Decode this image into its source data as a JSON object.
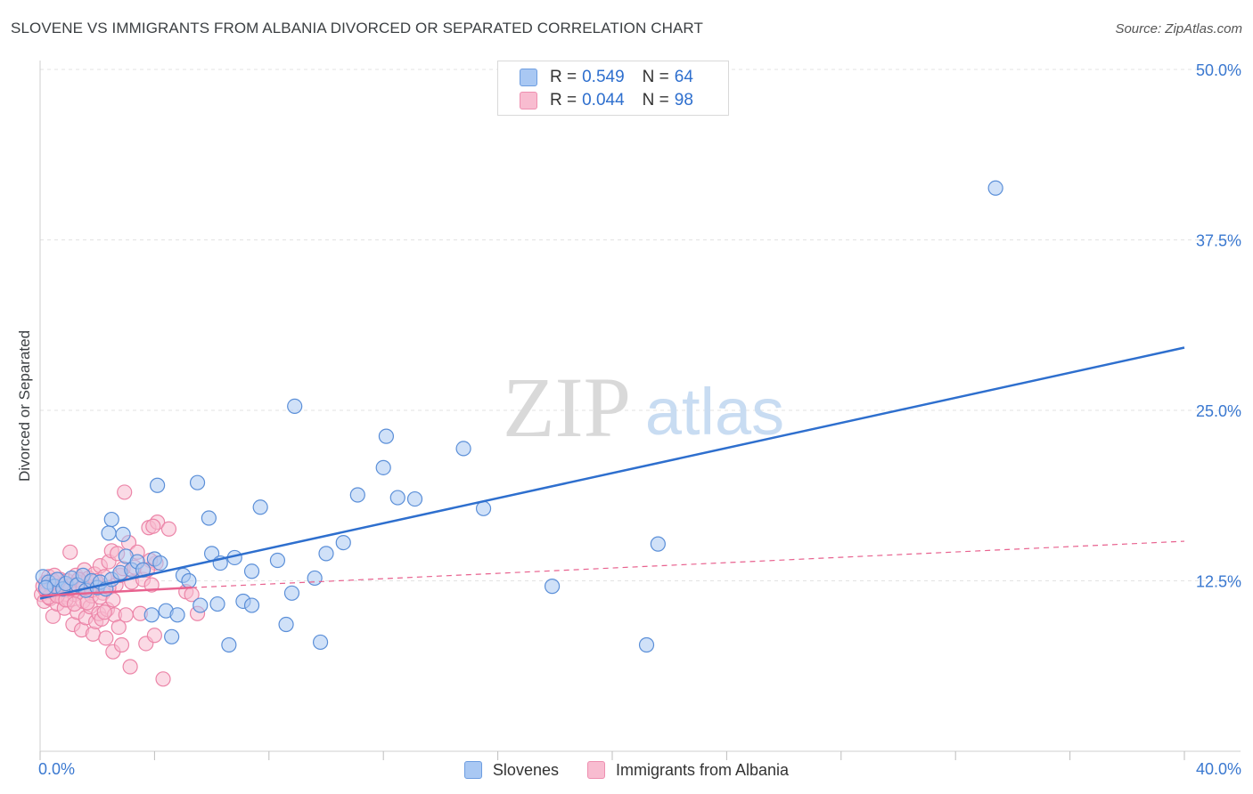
{
  "title": "SLOVENE VS IMMIGRANTS FROM ALBANIA DIVORCED OR SEPARATED CORRELATION CHART",
  "source": "Source: ZipAtlas.com",
  "watermark": {
    "zip": "ZIP",
    "atlas": "atlas"
  },
  "legend": {
    "r_label": "R =",
    "n_label": "N =",
    "rows": [
      {
        "r": "0.549",
        "n": "64",
        "color": "#a9c8f3",
        "stroke": "#6d9de0"
      },
      {
        "r": "0.044",
        "n": "98",
        "color": "#f8bcd0",
        "stroke": "#ee8fb0"
      }
    ]
  },
  "bottom_legend": [
    "Slovenes",
    "Immigrants from Albania"
  ],
  "chart_data": {
    "type": "scatter",
    "title": "SLOVENE VS IMMIGRANTS FROM ALBANIA DIVORCED OR SEPARATED CORRELATION CHART",
    "xlabel": "",
    "ylabel": "Divorced or Separated",
    "xlim": [
      0,
      40
    ],
    "ylim": [
      0,
      50
    ],
    "x_tick_labels": [
      "0.0%",
      "40.0%"
    ],
    "y_ticks": [
      12.5,
      25.0,
      37.5,
      50.0
    ],
    "y_tick_labels": [
      "12.5%",
      "25.0%",
      "37.5%",
      "50.0%"
    ],
    "grid": true,
    "colors": {
      "slovenes_fill": "#a9c8f3",
      "slovenes_stroke": "#5b8fd8",
      "slovenes_line": "#2e6fce",
      "albania_fill": "#f8bcd0",
      "albania_stroke": "#ec85a8",
      "albania_line": "#e8628f"
    },
    "series": [
      {
        "name": "Slovenes",
        "r": 0.549,
        "n": 64,
        "trend": {
          "x": [
            0,
            40
          ],
          "y": [
            11.2,
            29.6
          ]
        },
        "points": [
          [
            0.1,
            12.8
          ],
          [
            0.3,
            12.4
          ],
          [
            0.5,
            12.1
          ],
          [
            0.6,
            12.6
          ],
          [
            0.8,
            11.9
          ],
          [
            0.9,
            12.3
          ],
          [
            1.1,
            12.7
          ],
          [
            1.3,
            12.2
          ],
          [
            1.5,
            12.9
          ],
          [
            1.6,
            11.8
          ],
          [
            1.8,
            12.5
          ],
          [
            2.0,
            12.0
          ],
          [
            2.1,
            12.4
          ],
          [
            2.3,
            11.9
          ],
          [
            2.5,
            12.6
          ],
          [
            2.4,
            16.0
          ],
          [
            2.5,
            17.0
          ],
          [
            2.8,
            13.1
          ],
          [
            2.9,
            15.9
          ],
          [
            3.0,
            14.3
          ],
          [
            3.2,
            13.3
          ],
          [
            3.4,
            13.9
          ],
          [
            3.6,
            13.3
          ],
          [
            3.9,
            10.0
          ],
          [
            4.0,
            14.1
          ],
          [
            4.1,
            19.5
          ],
          [
            4.2,
            13.8
          ],
          [
            4.4,
            10.3
          ],
          [
            4.6,
            8.4
          ],
          [
            4.8,
            10.0
          ],
          [
            5.0,
            12.9
          ],
          [
            5.2,
            12.5
          ],
          [
            5.5,
            19.7
          ],
          [
            5.6,
            10.7
          ],
          [
            5.9,
            17.1
          ],
          [
            6.0,
            14.5
          ],
          [
            6.2,
            10.8
          ],
          [
            6.3,
            13.8
          ],
          [
            6.6,
            7.8
          ],
          [
            6.8,
            14.2
          ],
          [
            7.1,
            11.0
          ],
          [
            7.4,
            13.2
          ],
          [
            7.4,
            10.7
          ],
          [
            7.7,
            17.9
          ],
          [
            8.3,
            14.0
          ],
          [
            8.6,
            9.3
          ],
          [
            8.8,
            11.6
          ],
          [
            8.9,
            25.3
          ],
          [
            9.6,
            12.7
          ],
          [
            9.8,
            8.0
          ],
          [
            10.0,
            14.5
          ],
          [
            10.6,
            15.3
          ],
          [
            11.1,
            18.8
          ],
          [
            12.0,
            20.8
          ],
          [
            12.1,
            23.1
          ],
          [
            12.5,
            18.6
          ],
          [
            13.1,
            18.5
          ],
          [
            14.8,
            22.2
          ],
          [
            15.5,
            17.8
          ],
          [
            17.9,
            12.1
          ],
          [
            21.2,
            7.8
          ],
          [
            21.6,
            15.2
          ],
          [
            33.4,
            41.3
          ],
          [
            0.2,
            12.0
          ]
        ]
      },
      {
        "name": "Immigrants from Albania",
        "r": 0.044,
        "n": 98,
        "trend": {
          "x": [
            0,
            5.3
          ],
          "y": [
            11.4,
            12.0
          ]
        },
        "trend_dashed": {
          "x": [
            5.3,
            40
          ],
          "y": [
            12.0,
            15.4
          ]
        },
        "points": [
          [
            0.05,
            11.5
          ],
          [
            0.1,
            12.1
          ],
          [
            0.15,
            11.0
          ],
          [
            0.2,
            12.4
          ],
          [
            0.25,
            11.7
          ],
          [
            0.3,
            12.8
          ],
          [
            0.35,
            11.2
          ],
          [
            0.4,
            12.0
          ],
          [
            0.45,
            9.9
          ],
          [
            0.5,
            11.6
          ],
          [
            0.55,
            12.3
          ],
          [
            0.6,
            10.8
          ],
          [
            0.65,
            11.9
          ],
          [
            0.7,
            12.6
          ],
          [
            0.75,
            11.3
          ],
          [
            0.8,
            12.0
          ],
          [
            0.85,
            10.5
          ],
          [
            0.9,
            11.8
          ],
          [
            0.95,
            12.5
          ],
          [
            1.0,
            11.1
          ],
          [
            1.05,
            14.6
          ],
          [
            1.1,
            12.2
          ],
          [
            1.15,
            9.3
          ],
          [
            1.2,
            11.5
          ],
          [
            1.25,
            12.9
          ],
          [
            1.3,
            10.2
          ],
          [
            1.35,
            11.7
          ],
          [
            1.4,
            12.4
          ],
          [
            1.45,
            8.9
          ],
          [
            1.5,
            11.0
          ],
          [
            1.55,
            13.3
          ],
          [
            1.6,
            9.8
          ],
          [
            1.65,
            11.9
          ],
          [
            1.7,
            12.7
          ],
          [
            1.75,
            10.6
          ],
          [
            1.8,
            11.4
          ],
          [
            1.85,
            8.6
          ],
          [
            1.9,
            13.0
          ],
          [
            1.95,
            9.5
          ],
          [
            2.0,
            12.1
          ],
          [
            2.05,
            10.1
          ],
          [
            2.1,
            13.6
          ],
          [
            2.15,
            9.7
          ],
          [
            2.2,
            11.6
          ],
          [
            2.25,
            12.8
          ],
          [
            2.3,
            8.3
          ],
          [
            2.35,
            10.4
          ],
          [
            2.4,
            13.9
          ],
          [
            2.5,
            14.7
          ],
          [
            2.55,
            7.3
          ],
          [
            2.6,
            10.0
          ],
          [
            2.65,
            12.2
          ],
          [
            2.7,
            14.5
          ],
          [
            2.75,
            9.1
          ],
          [
            2.8,
            12.9
          ],
          [
            2.85,
            7.8
          ],
          [
            2.9,
            13.4
          ],
          [
            2.95,
            19.0
          ],
          [
            3.0,
            10.0
          ],
          [
            3.1,
            15.3
          ],
          [
            3.15,
            6.2
          ],
          [
            3.2,
            12.4
          ],
          [
            3.3,
            13.5
          ],
          [
            3.4,
            14.6
          ],
          [
            3.5,
            10.1
          ],
          [
            3.6,
            12.6
          ],
          [
            3.7,
            7.9
          ],
          [
            3.8,
            16.4
          ],
          [
            3.9,
            12.2
          ],
          [
            4.0,
            8.5
          ],
          [
            4.05,
            13.8
          ],
          [
            4.1,
            16.8
          ],
          [
            3.95,
            16.5
          ],
          [
            3.85,
            14.0
          ],
          [
            3.75,
            13.3
          ],
          [
            4.3,
            5.3
          ],
          [
            4.5,
            16.3
          ],
          [
            5.1,
            11.7
          ],
          [
            5.3,
            11.5
          ],
          [
            5.5,
            10.1
          ],
          [
            0.3,
            11.3
          ],
          [
            0.45,
            12.5
          ],
          [
            0.6,
            11.4
          ],
          [
            0.75,
            12.2
          ],
          [
            0.9,
            11.1
          ],
          [
            1.05,
            11.9
          ],
          [
            1.2,
            10.8
          ],
          [
            1.35,
            12.6
          ],
          [
            1.5,
            12.0
          ],
          [
            1.65,
            10.9
          ],
          [
            1.8,
            11.8
          ],
          [
            1.95,
            12.5
          ],
          [
            2.1,
            11.3
          ],
          [
            2.25,
            10.2
          ],
          [
            2.4,
            12.0
          ],
          [
            2.55,
            11.1
          ],
          [
            0.2,
            11.8
          ],
          [
            0.5,
            12.9
          ]
        ]
      }
    ]
  }
}
